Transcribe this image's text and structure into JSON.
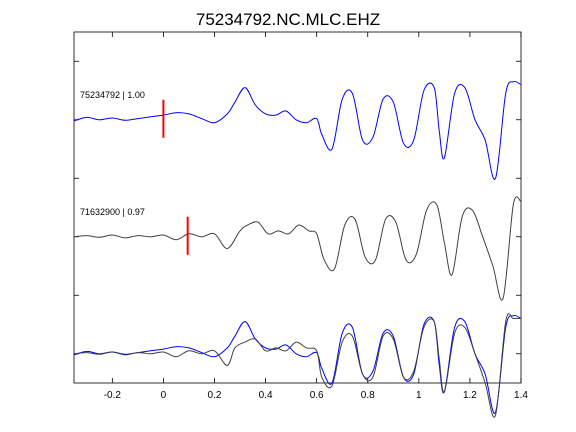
{
  "chart_data": {
    "type": "line",
    "title": "75234792.NC.MLC.EHZ",
    "xlabel": "",
    "ylabel": "",
    "xlim": [
      -0.35,
      1.4
    ],
    "x_ticks": [
      -0.2,
      0,
      0.2,
      0.4,
      0.6,
      0.8,
      1,
      1.2,
      1.4
    ],
    "x_tick_labels": [
      "-0.2",
      "0",
      "0.2",
      "0.4",
      "0.6",
      "0.8",
      "1",
      "1.2",
      "1.4"
    ],
    "ylim": [
      0.5,
      6.5
    ],
    "y_ticks": [
      1,
      2,
      3,
      4,
      5,
      6
    ],
    "grid": false,
    "colors": {
      "primary": "#0000ff",
      "secondary": "#404040",
      "pick": "#ff0000",
      "axes": "#000000"
    },
    "traces": [
      {
        "label": "75234792 | 1.00",
        "offset": 5,
        "pick_time": 0.0,
        "color": "#0000ff",
        "x": [
          -0.35,
          -0.3,
          -0.25,
          -0.2,
          -0.15,
          -0.1,
          -0.05,
          0,
          0.05,
          0.1,
          0.15,
          0.2,
          0.25,
          0.28,
          0.32,
          0.36,
          0.4,
          0.44,
          0.48,
          0.52,
          0.56,
          0.6,
          0.62,
          0.66,
          0.7,
          0.74,
          0.78,
          0.82,
          0.86,
          0.9,
          0.94,
          0.98,
          1.02,
          1.06,
          1.08,
          1.1,
          1.14,
          1.18,
          1.22,
          1.26,
          1.3,
          1.34,
          1.37,
          1.4
        ],
        "y": [
          -0.02,
          0.04,
          0.0,
          0.03,
          -0.01,
          0.02,
          0.05,
          0.08,
          0.12,
          0.1,
          0.02,
          -0.05,
          0.1,
          0.3,
          0.55,
          0.25,
          0.1,
          0.08,
          0.15,
          0.0,
          -0.05,
          0.02,
          -0.25,
          -0.5,
          0.35,
          0.45,
          -0.35,
          -0.3,
          0.35,
          0.3,
          -0.4,
          -0.35,
          0.5,
          0.55,
          -0.2,
          -0.65,
          0.45,
          0.55,
          0.0,
          -0.35,
          -1.0,
          0.45,
          0.65,
          0.6
        ]
      },
      {
        "label": "71632900 | 0.97",
        "offset": 3,
        "pick_time": 0.095,
        "color": "#404040",
        "x": [
          -0.35,
          -0.3,
          -0.25,
          -0.2,
          -0.15,
          -0.1,
          -0.05,
          0,
          0.05,
          0.1,
          0.15,
          0.2,
          0.25,
          0.3,
          0.33,
          0.37,
          0.41,
          0.45,
          0.49,
          0.53,
          0.57,
          0.6,
          0.63,
          0.67,
          0.71,
          0.75,
          0.79,
          0.83,
          0.87,
          0.91,
          0.95,
          0.99,
          1.03,
          1.07,
          1.1,
          1.13,
          1.17,
          1.21,
          1.25,
          1.29,
          1.33,
          1.37,
          1.4
        ],
        "y": [
          0.0,
          0.02,
          -0.01,
          0.03,
          -0.02,
          0.02,
          0.0,
          0.03,
          -0.05,
          0.05,
          0.0,
          0.05,
          -0.2,
          0.1,
          0.2,
          0.25,
          0.05,
          0.1,
          0.05,
          0.2,
          0.1,
          0.05,
          -0.4,
          -0.55,
          0.2,
          0.3,
          -0.35,
          -0.4,
          0.3,
          0.25,
          -0.4,
          -0.3,
          0.45,
          0.55,
          -0.1,
          -0.65,
          0.35,
          0.45,
          0.0,
          -0.5,
          -1.05,
          0.55,
          0.6
        ]
      },
      {
        "label": "",
        "offset": 1,
        "color": "#0000ff",
        "x": [
          -0.35,
          -0.3,
          -0.25,
          -0.2,
          -0.15,
          -0.1,
          -0.05,
          0,
          0.05,
          0.1,
          0.15,
          0.2,
          0.25,
          0.28,
          0.32,
          0.36,
          0.4,
          0.44,
          0.48,
          0.52,
          0.56,
          0.6,
          0.62,
          0.66,
          0.7,
          0.74,
          0.78,
          0.82,
          0.86,
          0.9,
          0.94,
          0.98,
          1.02,
          1.06,
          1.08,
          1.1,
          1.14,
          1.18,
          1.22,
          1.26,
          1.3,
          1.34,
          1.37,
          1.4
        ],
        "y": [
          -0.02,
          0.04,
          0.0,
          0.03,
          -0.01,
          0.02,
          0.05,
          0.08,
          0.12,
          0.1,
          0.02,
          -0.05,
          0.1,
          0.3,
          0.55,
          0.25,
          0.1,
          0.08,
          0.15,
          0.0,
          -0.05,
          0.02,
          -0.25,
          -0.5,
          0.35,
          0.45,
          -0.35,
          -0.3,
          0.35,
          0.3,
          -0.4,
          -0.35,
          0.5,
          0.55,
          -0.2,
          -0.65,
          0.45,
          0.55,
          0.0,
          -0.35,
          -1.0,
          0.45,
          0.65,
          0.6
        ]
      },
      {
        "label": "",
        "offset": 1,
        "color": "#404040",
        "x": [
          -0.35,
          -0.3,
          -0.25,
          -0.2,
          -0.15,
          -0.1,
          -0.05,
          0,
          0.05,
          0.1,
          0.15,
          0.2,
          0.25,
          0.28,
          0.32,
          0.36,
          0.4,
          0.44,
          0.48,
          0.52,
          0.56,
          0.6,
          0.62,
          0.66,
          0.7,
          0.74,
          0.78,
          0.82,
          0.86,
          0.9,
          0.94,
          0.98,
          1.02,
          1.06,
          1.08,
          1.1,
          1.14,
          1.18,
          1.22,
          1.26,
          1.3,
          1.34,
          1.37,
          1.4
        ],
        "y": [
          0.0,
          0.02,
          -0.01,
          0.03,
          -0.02,
          0.02,
          0.0,
          0.03,
          -0.05,
          0.05,
          0.0,
          0.05,
          -0.2,
          0.1,
          0.2,
          0.25,
          0.05,
          0.1,
          0.05,
          0.2,
          0.1,
          0.05,
          -0.4,
          -0.55,
          0.2,
          0.3,
          -0.35,
          -0.4,
          0.3,
          0.25,
          -0.4,
          -0.3,
          0.45,
          0.55,
          -0.1,
          -0.65,
          0.35,
          0.45,
          0.0,
          -0.5,
          -1.05,
          0.55,
          0.6,
          0.6
        ]
      }
    ]
  }
}
